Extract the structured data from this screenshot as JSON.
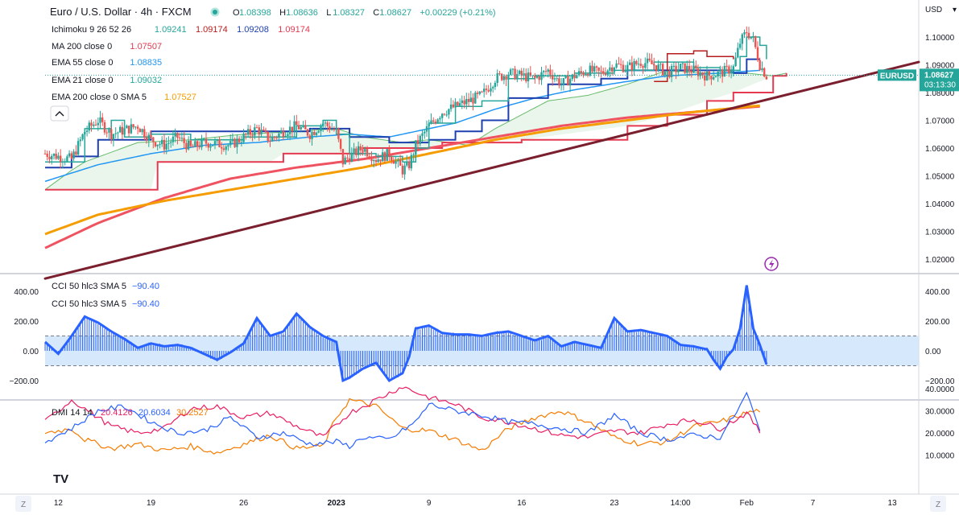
{
  "header": {
    "title": "Euro / U.S. Dollar · 4h · FXCM",
    "ohlc": [
      {
        "k": "O",
        "v": "1.08398"
      },
      {
        "k": "H",
        "v": "1.08636"
      },
      {
        "k": "L",
        "v": "1.08327"
      },
      {
        "k": "C",
        "v": "1.08627"
      },
      {
        "k": "",
        "v": "+0.00229 (+0.21%)"
      }
    ]
  },
  "indicators": [
    {
      "name": "Ichimoku 9 26 52 26",
      "values": [
        {
          "v": "1.09241",
          "color": "#26a69a"
        },
        {
          "v": "1.09174",
          "color": "#b71c1c"
        },
        {
          "v": "1.09208",
          "color": "#1e40af"
        },
        {
          "v": "1.09174",
          "color": "#e53950"
        }
      ]
    },
    {
      "name": "MA 200 close 0",
      "values": [
        {
          "v": "1.07507",
          "color": "#e53950"
        }
      ]
    },
    {
      "name": "EMA 55 close 0",
      "values": [
        {
          "v": "1.08835",
          "color": "#2196f3"
        }
      ]
    },
    {
      "name": "EMA 21 close 0",
      "values": [
        {
          "v": "1.09032",
          "color": "#26a69a"
        }
      ]
    },
    {
      "name": "EMA 200 close 0 SMA 5",
      "values": [
        {
          "v": "1.07527",
          "color": "#f59c00"
        }
      ]
    }
  ],
  "price_axis": {
    "currency": "USD",
    "ticks": [
      "1.10000",
      "1.09000",
      "1.08000",
      "1.07000",
      "1.06000",
      "1.05000",
      "1.04000",
      "1.03000",
      "1.02000"
    ],
    "tick_values": [
      1.1,
      1.09,
      1.08,
      1.07,
      1.06,
      1.05,
      1.04,
      1.03,
      1.02
    ],
    "label_symbol": "EURUSD",
    "label_price": "1.08627",
    "label_countdown": "03:13:30",
    "label_value": 1.08627
  },
  "cci_panel": {
    "legend": [
      "CCI 50 hlc3 SMA 5",
      "CCI 50 hlc3 SMA 5"
    ],
    "legend_value": "−90.40",
    "ticks": [
      "400.00",
      "200.00",
      "0.00",
      "−200.00"
    ],
    "tick_values": [
      400,
      200,
      0,
      -200
    ],
    "band": [
      100,
      -100
    ]
  },
  "dmi_panel": {
    "legend": "DMI 14 14",
    "values": [
      {
        "v": "20.4126",
        "color": "#e91e63"
      },
      {
        "v": "20.6034",
        "color": "#2962ff"
      },
      {
        "v": "30.2527",
        "color": "#f57c00"
      }
    ],
    "ticks": [
      "40.0000",
      "30.0000",
      "20.0000",
      "10.0000"
    ],
    "tick_values": [
      40,
      30,
      20,
      10
    ]
  },
  "time_axis": {
    "labels": [
      {
        "t": "12",
        "x": 12,
        "bold": false
      },
      {
        "t": "19",
        "x": 19,
        "bold": false
      },
      {
        "t": "26",
        "x": 26,
        "bold": false
      },
      {
        "t": "2023",
        "x": 33,
        "bold": true
      },
      {
        "t": "9",
        "x": 40,
        "bold": false
      },
      {
        "t": "16",
        "x": 47,
        "bold": false
      },
      {
        "t": "23",
        "x": 54,
        "bold": false
      },
      {
        "t": "14:00",
        "x": 59,
        "bold": false
      },
      {
        "t": "Feb",
        "x": 64,
        "bold": false
      },
      {
        "t": "7",
        "x": 69,
        "bold": false
      },
      {
        "t": "13",
        "x": 75,
        "bold": false
      }
    ],
    "left_btn": "Z",
    "right_btn": "Z"
  },
  "logo": "TV",
  "chart_data": {
    "type": "candlestick",
    "symbol": "EURUSD",
    "timeframe": "4h",
    "x_range": [
      11,
      77
    ],
    "y_range": [
      1.015,
      1.105
    ],
    "price_kp": [
      [
        11,
        1.058
      ],
      [
        13,
        1.056
      ],
      [
        14,
        1.066
      ],
      [
        15,
        1.07
      ],
      [
        16,
        1.065
      ],
      [
        18,
        1.068
      ],
      [
        19,
        1.063
      ],
      [
        20,
        1.061
      ],
      [
        21,
        1.064
      ],
      [
        22,
        1.06
      ],
      [
        23,
        1.062
      ],
      [
        25,
        1.061
      ],
      [
        26,
        1.064
      ],
      [
        27,
        1.067
      ],
      [
        28,
        1.063
      ],
      [
        29,
        1.066
      ],
      [
        30,
        1.068
      ],
      [
        31,
        1.065
      ],
      [
        32,
        1.069
      ],
      [
        33,
        1.066
      ],
      [
        33.5,
        1.055
      ],
      [
        34,
        1.057
      ],
      [
        35,
        1.06
      ],
      [
        36,
        1.056
      ],
      [
        37,
        1.058
      ],
      [
        38,
        1.052
      ],
      [
        38.5,
        1.054
      ],
      [
        39,
        1.061
      ],
      [
        40,
        1.068
      ],
      [
        41,
        1.073
      ],
      [
        42,
        1.075
      ],
      [
        43,
        1.077
      ],
      [
        44,
        1.079
      ],
      [
        45,
        1.085
      ],
      [
        46,
        1.087
      ],
      [
        47,
        1.086
      ],
      [
        48,
        1.085
      ],
      [
        49,
        1.088
      ],
      [
        50,
        1.083
      ],
      [
        51,
        1.086
      ],
      [
        52,
        1.088
      ],
      [
        53,
        1.087
      ],
      [
        54,
        1.09
      ],
      [
        55,
        1.089
      ],
      [
        56,
        1.091
      ],
      [
        57,
        1.09
      ],
      [
        58,
        1.087
      ],
      [
        59,
        1.089
      ],
      [
        60,
        1.088
      ],
      [
        61,
        1.086
      ],
      [
        62,
        1.087
      ],
      [
        63,
        1.089
      ],
      [
        63.5,
        1.098
      ],
      [
        64,
        1.102
      ],
      [
        64.5,
        1.099
      ],
      [
        65,
        1.09
      ],
      [
        65.5,
        1.086
      ]
    ],
    "ichimoku": {
      "tenkan": [
        [
          11,
          1.055
        ],
        [
          14,
          1.067
        ],
        [
          16,
          1.07
        ],
        [
          17,
          1.064
        ],
        [
          19,
          1.065
        ],
        [
          22,
          1.063
        ],
        [
          26,
          1.064
        ],
        [
          30,
          1.068
        ],
        [
          32,
          1.07
        ],
        [
          33,
          1.065
        ],
        [
          34,
          1.058
        ],
        [
          36,
          1.057
        ],
        [
          38,
          1.055
        ],
        [
          39,
          1.06
        ],
        [
          40,
          1.069
        ],
        [
          42,
          1.075
        ],
        [
          44,
          1.077
        ],
        [
          46,
          1.085
        ],
        [
          48,
          1.086
        ],
        [
          51,
          1.087
        ],
        [
          54,
          1.088
        ],
        [
          57,
          1.091
        ],
        [
          60,
          1.089
        ],
        [
          62,
          1.088
        ],
        [
          63.5,
          1.093
        ],
        [
          64,
          1.1
        ],
        [
          65,
          1.097
        ],
        [
          65.5,
          1.092
        ]
      ],
      "kijun": [
        [
          11,
          1.053
        ],
        [
          13,
          1.057
        ],
        [
          15,
          1.063
        ],
        [
          19,
          1.066
        ],
        [
          25,
          1.066
        ],
        [
          31,
          1.067
        ],
        [
          33,
          1.067
        ],
        [
          34,
          1.064
        ],
        [
          37,
          1.062
        ],
        [
          39,
          1.062
        ],
        [
          40,
          1.063
        ],
        [
          42,
          1.066
        ],
        [
          44,
          1.07
        ],
        [
          46,
          1.078
        ],
        [
          49,
          1.083
        ],
        [
          51,
          1.083
        ],
        [
          53,
          1.085
        ],
        [
          55,
          1.088
        ],
        [
          58,
          1.088
        ],
        [
          61,
          1.088
        ],
        [
          63,
          1.087
        ],
        [
          64,
          1.092
        ],
        [
          65,
          1.092
        ]
      ],
      "senkou_a": [
        [
          11,
          1.045
        ],
        [
          13,
          1.052
        ],
        [
          14,
          1.055
        ],
        [
          18,
          1.062
        ],
        [
          22,
          1.063
        ],
        [
          26,
          1.065
        ],
        [
          30,
          1.066
        ],
        [
          33,
          1.067
        ],
        [
          35,
          1.064
        ],
        [
          38,
          1.062
        ],
        [
          40,
          1.063
        ],
        [
          43,
          1.061
        ],
        [
          45,
          1.067
        ],
        [
          47,
          1.072
        ],
        [
          49,
          1.077
        ],
        [
          52,
          1.079
        ],
        [
          55,
          1.083
        ],
        [
          58,
          1.088
        ],
        [
          61,
          1.087
        ],
        [
          64,
          1.087
        ],
        [
          66,
          1.086
        ],
        [
          67,
          1.087
        ]
      ],
      "senkou_b": [
        [
          11,
          1.045
        ],
        [
          19,
          1.045
        ],
        [
          19.5,
          1.055
        ],
        [
          28,
          1.055
        ],
        [
          29,
          1.058
        ],
        [
          34,
          1.058
        ],
        [
          35,
          1.06
        ],
        [
          40,
          1.06
        ],
        [
          41,
          1.062
        ],
        [
          47,
          1.063
        ],
        [
          55,
          1.068
        ],
        [
          58,
          1.072
        ],
        [
          61,
          1.077
        ],
        [
          63,
          1.08
        ],
        [
          66,
          1.086
        ],
        [
          67,
          1.087
        ]
      ],
      "chikou": [
        [
          57,
          1.084
        ],
        [
          58,
          1.094
        ],
        [
          60,
          1.095
        ],
        [
          61,
          1.093
        ],
        [
          63,
          1.092
        ]
      ]
    },
    "ema55": [
      [
        11,
        1.048
      ],
      [
        15,
        1.054
      ],
      [
        19,
        1.058
      ],
      [
        23,
        1.061
      ],
      [
        27,
        1.062
      ],
      [
        31,
        1.064
      ],
      [
        34,
        1.065
      ],
      [
        37,
        1.064
      ],
      [
        39,
        1.066
      ],
      [
        42,
        1.069
      ],
      [
        45,
        1.074
      ],
      [
        48,
        1.078
      ],
      [
        51,
        1.081
      ],
      [
        55,
        1.084
      ],
      [
        58,
        1.086
      ],
      [
        62,
        1.087
      ],
      [
        65,
        1.088
      ]
    ],
    "ma200": [
      [
        11,
        1.024
      ],
      [
        15,
        1.033
      ],
      [
        20,
        1.042
      ],
      [
        25,
        1.049
      ],
      [
        30,
        1.053
      ],
      [
        35,
        1.056
      ],
      [
        40,
        1.06
      ],
      [
        45,
        1.064
      ],
      [
        50,
        1.068
      ],
      [
        55,
        1.071
      ],
      [
        60,
        1.073
      ],
      [
        65,
        1.075
      ]
    ],
    "ema200": [
      [
        11,
        1.029
      ],
      [
        15,
        1.036
      ],
      [
        20,
        1.041
      ],
      [
        25,
        1.045
      ],
      [
        30,
        1.049
      ],
      [
        35,
        1.053
      ],
      [
        40,
        1.058
      ],
      [
        45,
        1.063
      ],
      [
        50,
        1.067
      ],
      [
        55,
        1.07
      ],
      [
        60,
        1.073
      ],
      [
        65,
        1.0753
      ]
    ],
    "trendline": [
      [
        11,
        1.013
      ],
      [
        77,
        1.091
      ]
    ],
    "cci": [
      [
        11,
        60
      ],
      [
        12,
        -20
      ],
      [
        13,
        100
      ],
      [
        14,
        230
      ],
      [
        15,
        190
      ],
      [
        16,
        130
      ],
      [
        17,
        80
      ],
      [
        18,
        20
      ],
      [
        19,
        50
      ],
      [
        20,
        30
      ],
      [
        21,
        40
      ],
      [
        22,
        20
      ],
      [
        23,
        -20
      ],
      [
        24,
        -60
      ],
      [
        25,
        -10
      ],
      [
        26,
        50
      ],
      [
        27,
        220
      ],
      [
        28,
        100
      ],
      [
        29,
        130
      ],
      [
        30,
        250
      ],
      [
        31,
        160
      ],
      [
        32,
        100
      ],
      [
        33,
        60
      ],
      [
        33.5,
        -200
      ],
      [
        34,
        -180
      ],
      [
        35,
        -120
      ],
      [
        36,
        -80
      ],
      [
        37,
        -200
      ],
      [
        38,
        -150
      ],
      [
        38.5,
        -40
      ],
      [
        39,
        150
      ],
      [
        40,
        170
      ],
      [
        41,
        120
      ],
      [
        42,
        110
      ],
      [
        43,
        110
      ],
      [
        44,
        100
      ],
      [
        45,
        120
      ],
      [
        46,
        130
      ],
      [
        47,
        100
      ],
      [
        48,
        70
      ],
      [
        49,
        100
      ],
      [
        50,
        30
      ],
      [
        51,
        60
      ],
      [
        52,
        40
      ],
      [
        53,
        20
      ],
      [
        54,
        220
      ],
      [
        55,
        130
      ],
      [
        56,
        140
      ],
      [
        57,
        120
      ],
      [
        58,
        100
      ],
      [
        59,
        40
      ],
      [
        60,
        30
      ],
      [
        61,
        10
      ],
      [
        61.5,
        -60
      ],
      [
        62,
        -120
      ],
      [
        62.5,
        -40
      ],
      [
        63,
        10
      ],
      [
        63.5,
        150
      ],
      [
        64,
        440
      ],
      [
        64.5,
        150
      ],
      [
        65,
        40
      ],
      [
        65.5,
        -90
      ]
    ],
    "dmi_plus": [
      [
        11,
        25
      ],
      [
        13,
        35
      ],
      [
        16,
        23
      ],
      [
        18,
        20
      ],
      [
        20,
        22
      ],
      [
        22,
        31
      ],
      [
        24,
        32
      ],
      [
        26,
        27
      ],
      [
        28,
        29
      ],
      [
        30,
        23
      ],
      [
        32,
        18
      ],
      [
        34,
        29
      ],
      [
        36,
        35
      ],
      [
        38,
        41
      ],
      [
        40,
        36
      ],
      [
        42,
        33
      ],
      [
        44,
        27
      ],
      [
        46,
        25
      ],
      [
        48,
        22
      ],
      [
        50,
        19
      ],
      [
        52,
        18
      ],
      [
        54,
        21
      ],
      [
        56,
        20
      ],
      [
        58,
        24
      ],
      [
        60,
        26
      ],
      [
        62,
        22
      ],
      [
        64,
        29
      ],
      [
        65,
        20.4
      ]
    ],
    "dmi_minus": [
      [
        11,
        16
      ],
      [
        13,
        22
      ],
      [
        15,
        30
      ],
      [
        17,
        32
      ],
      [
        19,
        25
      ],
      [
        21,
        20
      ],
      [
        23,
        21
      ],
      [
        25,
        27
      ],
      [
        27,
        18
      ],
      [
        29,
        20
      ],
      [
        31,
        15
      ],
      [
        33,
        16
      ],
      [
        34,
        14
      ],
      [
        35,
        18
      ],
      [
        37,
        17
      ],
      [
        39,
        25
      ],
      [
        40,
        33
      ],
      [
        42,
        30
      ],
      [
        44,
        28
      ],
      [
        46,
        25
      ],
      [
        48,
        24
      ],
      [
        50,
        22
      ],
      [
        52,
        20
      ],
      [
        54,
        28
      ],
      [
        56,
        20
      ],
      [
        58,
        17
      ],
      [
        60,
        19
      ],
      [
        62,
        18
      ],
      [
        63.5,
        32
      ],
      [
        64,
        38
      ],
      [
        65,
        20.6
      ]
    ],
    "adx": [
      [
        11,
        20
      ],
      [
        13,
        22
      ],
      [
        14,
        17
      ],
      [
        16,
        13
      ],
      [
        18,
        15
      ],
      [
        20,
        12
      ],
      [
        22,
        14
      ],
      [
        24,
        11
      ],
      [
        26,
        15
      ],
      [
        28,
        19
      ],
      [
        30,
        13
      ],
      [
        32,
        14
      ],
      [
        33,
        27
      ],
      [
        34,
        35
      ],
      [
        36,
        32
      ],
      [
        38,
        22
      ],
      [
        40,
        21
      ],
      [
        42,
        17
      ],
      [
        44,
        12
      ],
      [
        46,
        22
      ],
      [
        48,
        27
      ],
      [
        50,
        30
      ],
      [
        52,
        25
      ],
      [
        54,
        18
      ],
      [
        56,
        15
      ],
      [
        58,
        16
      ],
      [
        60,
        23
      ],
      [
        62,
        25
      ],
      [
        63,
        27
      ],
      [
        64,
        29
      ],
      [
        65,
        30.25
      ]
    ]
  }
}
